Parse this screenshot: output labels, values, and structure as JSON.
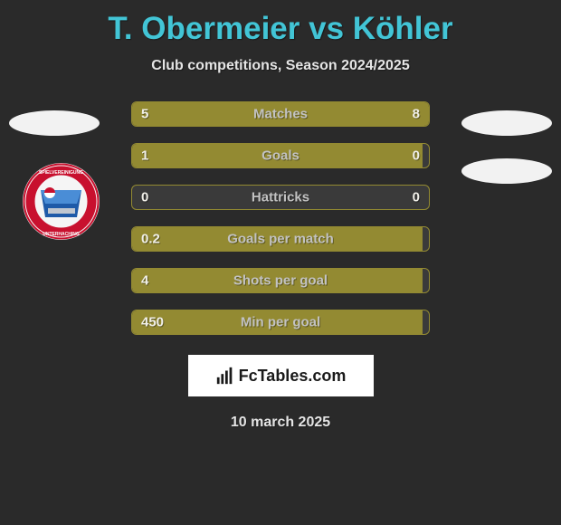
{
  "title": "T. Obermeier vs Köhler",
  "subtitle": "Club competitions, Season 2024/2025",
  "date": "10 march 2025",
  "branding_text": "FcTables.com",
  "colors": {
    "background": "#2a2a2a",
    "title": "#42c5d6",
    "bar_fill": "#938a32",
    "bar_border": "#938a32",
    "text_light": "#e5e5e5",
    "value_text": "#f0efe8",
    "label_text": "#c2c2c2",
    "brand_bg": "#ffffff",
    "brand_text": "#1a1a1a"
  },
  "stats": [
    {
      "label": "Matches",
      "left_val": "5",
      "right_val": "8",
      "left_pct": 38,
      "right_pct": 62
    },
    {
      "label": "Goals",
      "left_val": "1",
      "right_val": "0",
      "left_pct": 98,
      "right_pct": 0
    },
    {
      "label": "Hattricks",
      "left_val": "0",
      "right_val": "0",
      "left_pct": 0,
      "right_pct": 0
    },
    {
      "label": "Goals per match",
      "left_val": "0.2",
      "right_val": "",
      "left_pct": 98,
      "right_pct": 0
    },
    {
      "label": "Shots per goal",
      "left_val": "4",
      "right_val": "",
      "left_pct": 98,
      "right_pct": 0
    },
    {
      "label": "Min per goal",
      "left_val": "450",
      "right_val": "",
      "left_pct": 98,
      "right_pct": 0
    }
  ],
  "team_logo": {
    "outer_ring": "#c8102e",
    "inner": "#1e5aa8",
    "text": "SPIELVEREINIGUNG UNTERHACHING"
  }
}
